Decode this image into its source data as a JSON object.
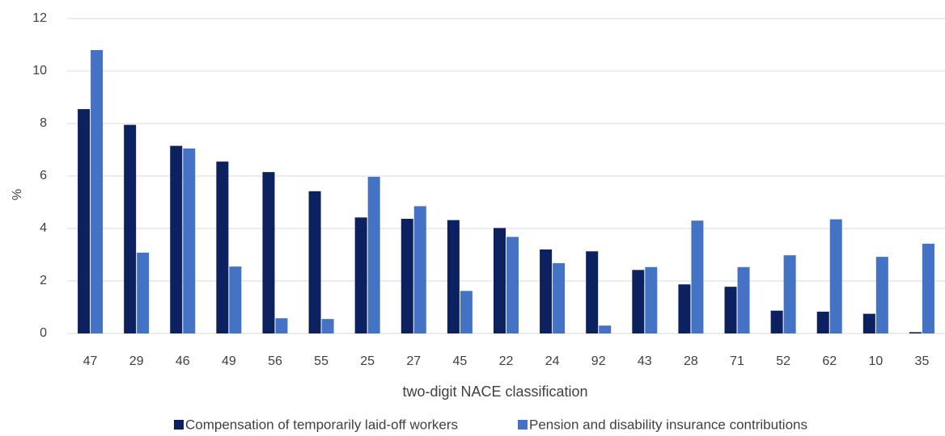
{
  "chart_data": {
    "type": "bar",
    "categories": [
      "47",
      "29",
      "46",
      "49",
      "56",
      "55",
      "25",
      "27",
      "45",
      "22",
      "24",
      "92",
      "43",
      "28",
      "71",
      "52",
      "62",
      "10",
      "35"
    ],
    "series": [
      {
        "name": "Compensation of temporarily laid-off workers",
        "color": "#0c2160",
        "values": [
          8.55,
          7.95,
          7.15,
          6.55,
          6.15,
          5.42,
          4.42,
          4.37,
          4.32,
          4.02,
          3.2,
          3.13,
          2.42,
          1.87,
          1.78,
          0.87,
          0.83,
          0.75,
          0.05
        ]
      },
      {
        "name": "Pension and disability insurance contributions",
        "color": "#4472c4",
        "values": [
          10.8,
          3.08,
          7.05,
          2.55,
          0.58,
          0.55,
          5.97,
          4.85,
          1.62,
          3.68,
          2.68,
          0.3,
          2.53,
          4.3,
          2.53,
          2.98,
          4.35,
          2.92,
          3.42
        ]
      }
    ],
    "x_label": "two-digit NACE classification",
    "y_label": "%",
    "ylim": [
      0,
      12
    ],
    "yticks": [
      0,
      2,
      4,
      6,
      8,
      10,
      12
    ],
    "grid": true,
    "legend": "bottom"
  }
}
